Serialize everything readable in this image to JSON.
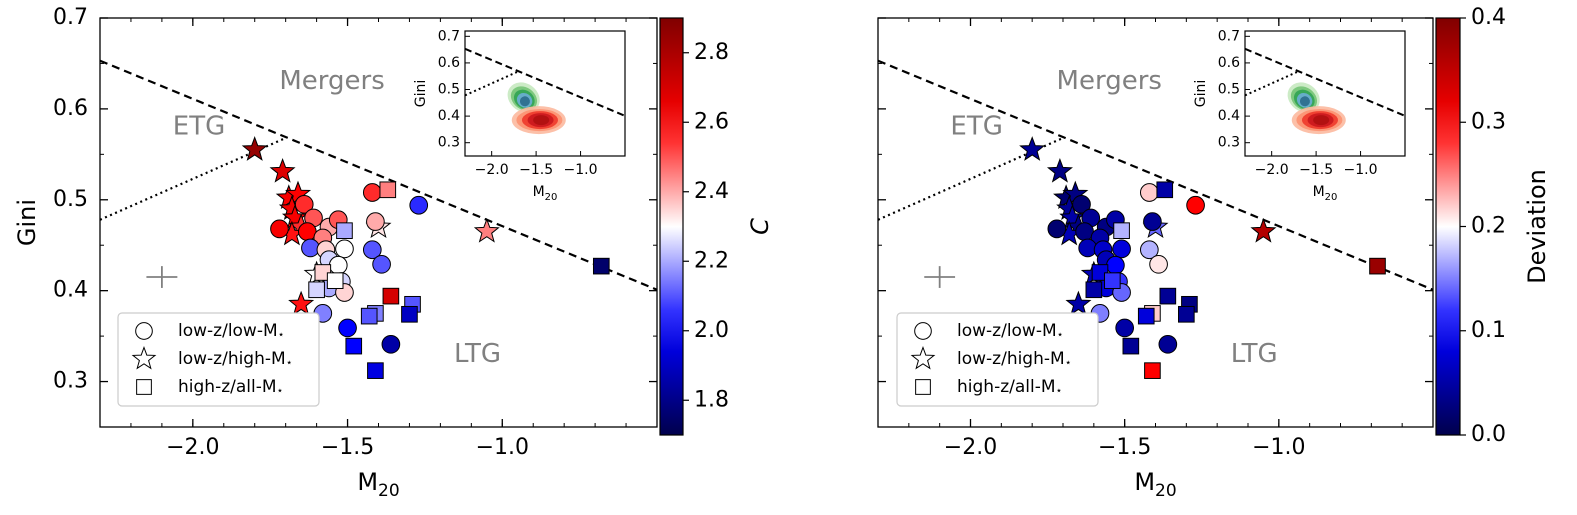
{
  "chart_data": [
    {
      "type": "scatter",
      "panel": "left",
      "xlabel": "M",
      "xlabel_sub": "20",
      "ylabel": "Gini",
      "xlim": [
        -2.3,
        -0.5
      ],
      "ylim": [
        0.25,
        0.7
      ],
      "xticks": [
        -2.0,
        -1.5,
        -1.0
      ],
      "xtick_labels": [
        "−2.0",
        "−1.5",
        "−1.0"
      ],
      "yticks": [
        0.3,
        0.4,
        0.5,
        0.6,
        0.7
      ],
      "ytick_labels": [
        "0.3",
        "0.4",
        "0.5",
        "0.6",
        "0.7"
      ],
      "region_labels": [
        "Mergers",
        "ETG",
        "LTG"
      ],
      "legend": {
        "position": "lower-left",
        "entries": [
          {
            "marker": "circle",
            "label": "low-z/low-M",
            "sub": "⋆"
          },
          {
            "marker": "star",
            "label": "low-z/high-M",
            "sub": "⋆"
          },
          {
            "marker": "square",
            "label": "high-z/all-M",
            "sub": "⋆"
          }
        ]
      },
      "colorbar": {
        "label": "C",
        "range": [
          1.7,
          2.9
        ],
        "ticks": [
          1.8,
          2.0,
          2.2,
          2.4,
          2.6,
          2.8
        ],
        "tick_labels": [
          "1.8",
          "2.0",
          "2.2",
          "2.4",
          "2.6",
          "2.8"
        ],
        "colormap": "seismic-like blue-white-red"
      },
      "lines": {
        "merger_dashed": {
          "x": [
            -2.3,
            -0.5
          ],
          "y": [
            0.653,
            0.401
          ]
        },
        "etg_dotted": {
          "x": [
            -2.3,
            -1.7
          ],
          "y": [
            0.478,
            0.568
          ]
        }
      },
      "error_bar_marker": {
        "x": -2.1,
        "y": 0.415,
        "xerr": 0.05,
        "yerr": 0.012
      },
      "points": [
        {
          "marker": "star",
          "x": -1.8,
          "y": 0.555,
          "c": 2.85
        },
        {
          "marker": "star",
          "x": -1.71,
          "y": 0.531,
          "c": 2.68
        },
        {
          "marker": "star",
          "x": -1.69,
          "y": 0.502,
          "c": 2.62
        },
        {
          "marker": "star",
          "x": -1.66,
          "y": 0.506,
          "c": 2.6
        },
        {
          "marker": "star",
          "x": -1.68,
          "y": 0.49,
          "c": 2.63
        },
        {
          "marker": "star",
          "x": -1.67,
          "y": 0.48,
          "c": 2.62
        },
        {
          "marker": "star",
          "x": -1.65,
          "y": 0.47,
          "c": 2.55
        },
        {
          "marker": "star",
          "x": -1.68,
          "y": 0.462,
          "c": 2.58
        },
        {
          "marker": "star",
          "x": -1.65,
          "y": 0.385,
          "c": 2.58
        },
        {
          "marker": "star",
          "x": -1.4,
          "y": 0.47,
          "c": 2.33
        },
        {
          "marker": "star",
          "x": -1.05,
          "y": 0.465,
          "c": 2.45
        },
        {
          "marker": "star",
          "x": -1.6,
          "y": 0.418,
          "c": 2.3
        },
        {
          "marker": "circle",
          "x": -1.64,
          "y": 0.495,
          "c": 2.55
        },
        {
          "marker": "circle",
          "x": -1.72,
          "y": 0.468,
          "c": 2.62
        },
        {
          "marker": "circle",
          "x": -1.61,
          "y": 0.48,
          "c": 2.5
        },
        {
          "marker": "circle",
          "x": -1.56,
          "y": 0.47,
          "c": 2.4
        },
        {
          "marker": "circle",
          "x": -1.53,
          "y": 0.478,
          "c": 2.5
        },
        {
          "marker": "circle",
          "x": -1.63,
          "y": 0.465,
          "c": 2.6
        },
        {
          "marker": "circle",
          "x": -1.58,
          "y": 0.458,
          "c": 2.45
        },
        {
          "marker": "circle",
          "x": -1.62,
          "y": 0.447,
          "c": 2.1
        },
        {
          "marker": "circle",
          "x": -1.57,
          "y": 0.445,
          "c": 2.35
        },
        {
          "marker": "circle",
          "x": -1.51,
          "y": 0.446,
          "c": 2.3
        },
        {
          "marker": "circle",
          "x": -1.56,
          "y": 0.434,
          "c": 2.25
        },
        {
          "marker": "circle",
          "x": -1.53,
          "y": 0.428,
          "c": 2.3
        },
        {
          "marker": "circle",
          "x": -1.52,
          "y": 0.41,
          "c": 2.25
        },
        {
          "marker": "circle",
          "x": -1.56,
          "y": 0.403,
          "c": 2.2
        },
        {
          "marker": "circle",
          "x": -1.51,
          "y": 0.398,
          "c": 2.35
        },
        {
          "marker": "circle",
          "x": -1.58,
          "y": 0.375,
          "c": 2.15
        },
        {
          "marker": "circle",
          "x": -1.42,
          "y": 0.508,
          "c": 2.55
        },
        {
          "marker": "circle",
          "x": -1.41,
          "y": 0.476,
          "c": 2.4
        },
        {
          "marker": "circle",
          "x": -1.27,
          "y": 0.494,
          "c": 2.05
        },
        {
          "marker": "circle",
          "x": -1.42,
          "y": 0.445,
          "c": 2.1
        },
        {
          "marker": "circle",
          "x": -1.39,
          "y": 0.429,
          "c": 2.1
        },
        {
          "marker": "circle",
          "x": -1.5,
          "y": 0.359,
          "c": 2.0
        },
        {
          "marker": "circle",
          "x": -1.36,
          "y": 0.341,
          "c": 1.85
        },
        {
          "marker": "square",
          "x": -1.37,
          "y": 0.511,
          "c": 2.45
        },
        {
          "marker": "square",
          "x": -1.51,
          "y": 0.466,
          "c": 2.2
        },
        {
          "marker": "square",
          "x": -1.58,
          "y": 0.42,
          "c": 2.35
        },
        {
          "marker": "square",
          "x": -1.54,
          "y": 0.411,
          "c": 2.3
        },
        {
          "marker": "square",
          "x": -1.6,
          "y": 0.401,
          "c": 2.25
        },
        {
          "marker": "square",
          "x": -1.36,
          "y": 0.394,
          "c": 2.7
        },
        {
          "marker": "square",
          "x": -1.29,
          "y": 0.385,
          "c": 2.1
        },
        {
          "marker": "square",
          "x": -1.41,
          "y": 0.375,
          "c": 2.15
        },
        {
          "marker": "square",
          "x": -1.43,
          "y": 0.372,
          "c": 2.1
        },
        {
          "marker": "square",
          "x": -1.3,
          "y": 0.374,
          "c": 1.9
        },
        {
          "marker": "square",
          "x": -1.48,
          "y": 0.339,
          "c": 2.0
        },
        {
          "marker": "square",
          "x": -1.41,
          "y": 0.312,
          "c": 1.95
        },
        {
          "marker": "square",
          "x": -0.68,
          "y": 0.427,
          "c": 1.75
        }
      ],
      "inset": {
        "xlabel": "M",
        "xlabel_sub": "20",
        "ylabel": "Gini",
        "xlim": [
          -2.3,
          -0.5
        ],
        "ylim": [
          0.25,
          0.72
        ],
        "xticks": [
          -2.0,
          -1.5,
          -1.0
        ],
        "xtick_labels": [
          "−2.0",
          "−1.5",
          "−1.0"
        ],
        "yticks": [
          0.3,
          0.4,
          0.5,
          0.6,
          0.7
        ],
        "ytick_labels": [
          "0.3",
          "0.4",
          "0.5",
          "0.6",
          "0.7"
        ],
        "density_contours": [
          {
            "name": "green-blue",
            "center": [
              -1.64,
              0.47
            ],
            "colors": [
              "#c7e9c0",
              "#74c476",
              "#31a354",
              "#6baed6",
              "#2b6c8c"
            ]
          },
          {
            "name": "red",
            "center": [
              -1.47,
              0.385
            ],
            "colors": [
              "#fcbba1",
              "#fc9272",
              "#ef3b2c",
              "#cb181d",
              "#b01010"
            ]
          }
        ]
      }
    },
    {
      "type": "scatter",
      "panel": "right",
      "xlabel": "M",
      "xlabel_sub": "20",
      "ylabel": "",
      "xlim": [
        -2.3,
        -0.5
      ],
      "ylim": [
        0.25,
        0.7
      ],
      "xticks": [
        -2.0,
        -1.5,
        -1.0
      ],
      "xtick_labels": [
        "−2.0",
        "−1.5",
        "−1.0"
      ],
      "region_labels": [
        "Mergers",
        "ETG",
        "LTG"
      ],
      "legend": {
        "position": "lower-left",
        "entries": [
          {
            "marker": "circle",
            "label": "low-z/low-M",
            "sub": "⋆"
          },
          {
            "marker": "star",
            "label": "low-z/high-M",
            "sub": "⋆"
          },
          {
            "marker": "square",
            "label": "high-z/all-M",
            "sub": "⋆"
          }
        ]
      },
      "colorbar": {
        "label": "Deviation",
        "range": [
          0.0,
          0.4
        ],
        "ticks": [
          0.0,
          0.1,
          0.2,
          0.3,
          0.4
        ],
        "tick_labels": [
          "0.0",
          "0.1",
          "0.2",
          "0.3",
          "0.4"
        ],
        "colormap": "seismic-like blue-white-red"
      },
      "lines": {
        "merger_dashed": {
          "x": [
            -2.3,
            -0.5
          ],
          "y": [
            0.653,
            0.401
          ]
        },
        "etg_dotted": {
          "x": [
            -2.3,
            -1.7
          ],
          "y": [
            0.478,
            0.568
          ]
        }
      },
      "error_bar_marker": {
        "x": -2.1,
        "y": 0.415,
        "xerr": 0.05,
        "yerr": 0.012
      },
      "points": [
        {
          "marker": "star",
          "x": -1.8,
          "y": 0.555,
          "c": 0.04
        },
        {
          "marker": "star",
          "x": -1.71,
          "y": 0.531,
          "c": 0.03
        },
        {
          "marker": "star",
          "x": -1.69,
          "y": 0.502,
          "c": 0.02
        },
        {
          "marker": "star",
          "x": -1.66,
          "y": 0.506,
          "c": 0.03
        },
        {
          "marker": "star",
          "x": -1.68,
          "y": 0.49,
          "c": 0.04
        },
        {
          "marker": "star",
          "x": -1.67,
          "y": 0.48,
          "c": 0.05
        },
        {
          "marker": "star",
          "x": -1.65,
          "y": 0.47,
          "c": 0.03
        },
        {
          "marker": "star",
          "x": -1.68,
          "y": 0.462,
          "c": 0.06
        },
        {
          "marker": "star",
          "x": -1.65,
          "y": 0.385,
          "c": 0.05
        },
        {
          "marker": "star",
          "x": -1.4,
          "y": 0.47,
          "c": 0.14
        },
        {
          "marker": "star",
          "x": -1.05,
          "y": 0.465,
          "c": 0.36
        },
        {
          "marker": "star",
          "x": -1.6,
          "y": 0.418,
          "c": 0.06
        },
        {
          "marker": "circle",
          "x": -1.64,
          "y": 0.495,
          "c": 0.02
        },
        {
          "marker": "circle",
          "x": -1.72,
          "y": 0.468,
          "c": 0.02
        },
        {
          "marker": "circle",
          "x": -1.61,
          "y": 0.48,
          "c": 0.04
        },
        {
          "marker": "circle",
          "x": -1.56,
          "y": 0.47,
          "c": 0.03
        },
        {
          "marker": "circle",
          "x": -1.53,
          "y": 0.478,
          "c": 0.05
        },
        {
          "marker": "circle",
          "x": -1.63,
          "y": 0.465,
          "c": 0.03
        },
        {
          "marker": "circle",
          "x": -1.58,
          "y": 0.458,
          "c": 0.05
        },
        {
          "marker": "circle",
          "x": -1.62,
          "y": 0.447,
          "c": 0.06
        },
        {
          "marker": "circle",
          "x": -1.57,
          "y": 0.445,
          "c": 0.07
        },
        {
          "marker": "circle",
          "x": -1.51,
          "y": 0.446,
          "c": 0.08
        },
        {
          "marker": "circle",
          "x": -1.56,
          "y": 0.434,
          "c": 0.06
        },
        {
          "marker": "circle",
          "x": -1.53,
          "y": 0.428,
          "c": 0.1
        },
        {
          "marker": "circle",
          "x": -1.52,
          "y": 0.41,
          "c": 0.12
        },
        {
          "marker": "circle",
          "x": -1.56,
          "y": 0.403,
          "c": 0.08
        },
        {
          "marker": "circle",
          "x": -1.51,
          "y": 0.398,
          "c": 0.14
        },
        {
          "marker": "circle",
          "x": -1.58,
          "y": 0.375,
          "c": 0.15
        },
        {
          "marker": "circle",
          "x": -1.42,
          "y": 0.508,
          "c": 0.22
        },
        {
          "marker": "circle",
          "x": -1.41,
          "y": 0.476,
          "c": 0.04
        },
        {
          "marker": "circle",
          "x": -1.27,
          "y": 0.494,
          "c": 0.3
        },
        {
          "marker": "circle",
          "x": -1.42,
          "y": 0.445,
          "c": 0.17
        },
        {
          "marker": "circle",
          "x": -1.39,
          "y": 0.429,
          "c": 0.21
        },
        {
          "marker": "circle",
          "x": -1.5,
          "y": 0.359,
          "c": 0.05
        },
        {
          "marker": "circle",
          "x": -1.36,
          "y": 0.341,
          "c": 0.04
        },
        {
          "marker": "square",
          "x": -1.37,
          "y": 0.511,
          "c": 0.05
        },
        {
          "marker": "square",
          "x": -1.51,
          "y": 0.466,
          "c": 0.17
        },
        {
          "marker": "square",
          "x": -1.58,
          "y": 0.42,
          "c": 0.08
        },
        {
          "marker": "square",
          "x": -1.54,
          "y": 0.411,
          "c": 0.12
        },
        {
          "marker": "square",
          "x": -1.6,
          "y": 0.401,
          "c": 0.05
        },
        {
          "marker": "square",
          "x": -1.36,
          "y": 0.394,
          "c": 0.04
        },
        {
          "marker": "square",
          "x": -1.29,
          "y": 0.385,
          "c": 0.03
        },
        {
          "marker": "square",
          "x": -1.41,
          "y": 0.375,
          "c": 0.22
        },
        {
          "marker": "square",
          "x": -1.43,
          "y": 0.372,
          "c": 0.08
        },
        {
          "marker": "square",
          "x": -1.3,
          "y": 0.374,
          "c": 0.04
        },
        {
          "marker": "square",
          "x": -1.48,
          "y": 0.339,
          "c": 0.04
        },
        {
          "marker": "square",
          "x": -1.41,
          "y": 0.312,
          "c": 0.3
        },
        {
          "marker": "square",
          "x": -0.68,
          "y": 0.427,
          "c": 0.38
        }
      ],
      "inset": {
        "xlabel": "M",
        "xlabel_sub": "20",
        "ylabel": "Gini",
        "xlim": [
          -2.3,
          -0.5
        ],
        "ylim": [
          0.25,
          0.72
        ],
        "xticks": [
          -2.0,
          -1.5,
          -1.0
        ],
        "xtick_labels": [
          "−2.0",
          "−1.5",
          "−1.0"
        ],
        "yticks": [
          0.3,
          0.4,
          0.5,
          0.6,
          0.7
        ],
        "ytick_labels": [
          "0.3",
          "0.4",
          "0.5",
          "0.6",
          "0.7"
        ],
        "density_contours": [
          {
            "name": "green-blue",
            "center": [
              -1.64,
              0.47
            ],
            "colors": [
              "#c7e9c0",
              "#74c476",
              "#31a354",
              "#6baed6",
              "#2b6c8c"
            ]
          },
          {
            "name": "red",
            "center": [
              -1.47,
              0.385
            ],
            "colors": [
              "#fcbba1",
              "#fc9272",
              "#ef3b2c",
              "#cb181d",
              "#b01010"
            ]
          }
        ]
      }
    }
  ],
  "colors": {
    "region_label": "#808080",
    "axis": "#000000",
    "marker_edge": "#000000",
    "cmap_low": "#00004c",
    "cmap_mid": "#ffffff",
    "cmap_high": "#800000"
  }
}
